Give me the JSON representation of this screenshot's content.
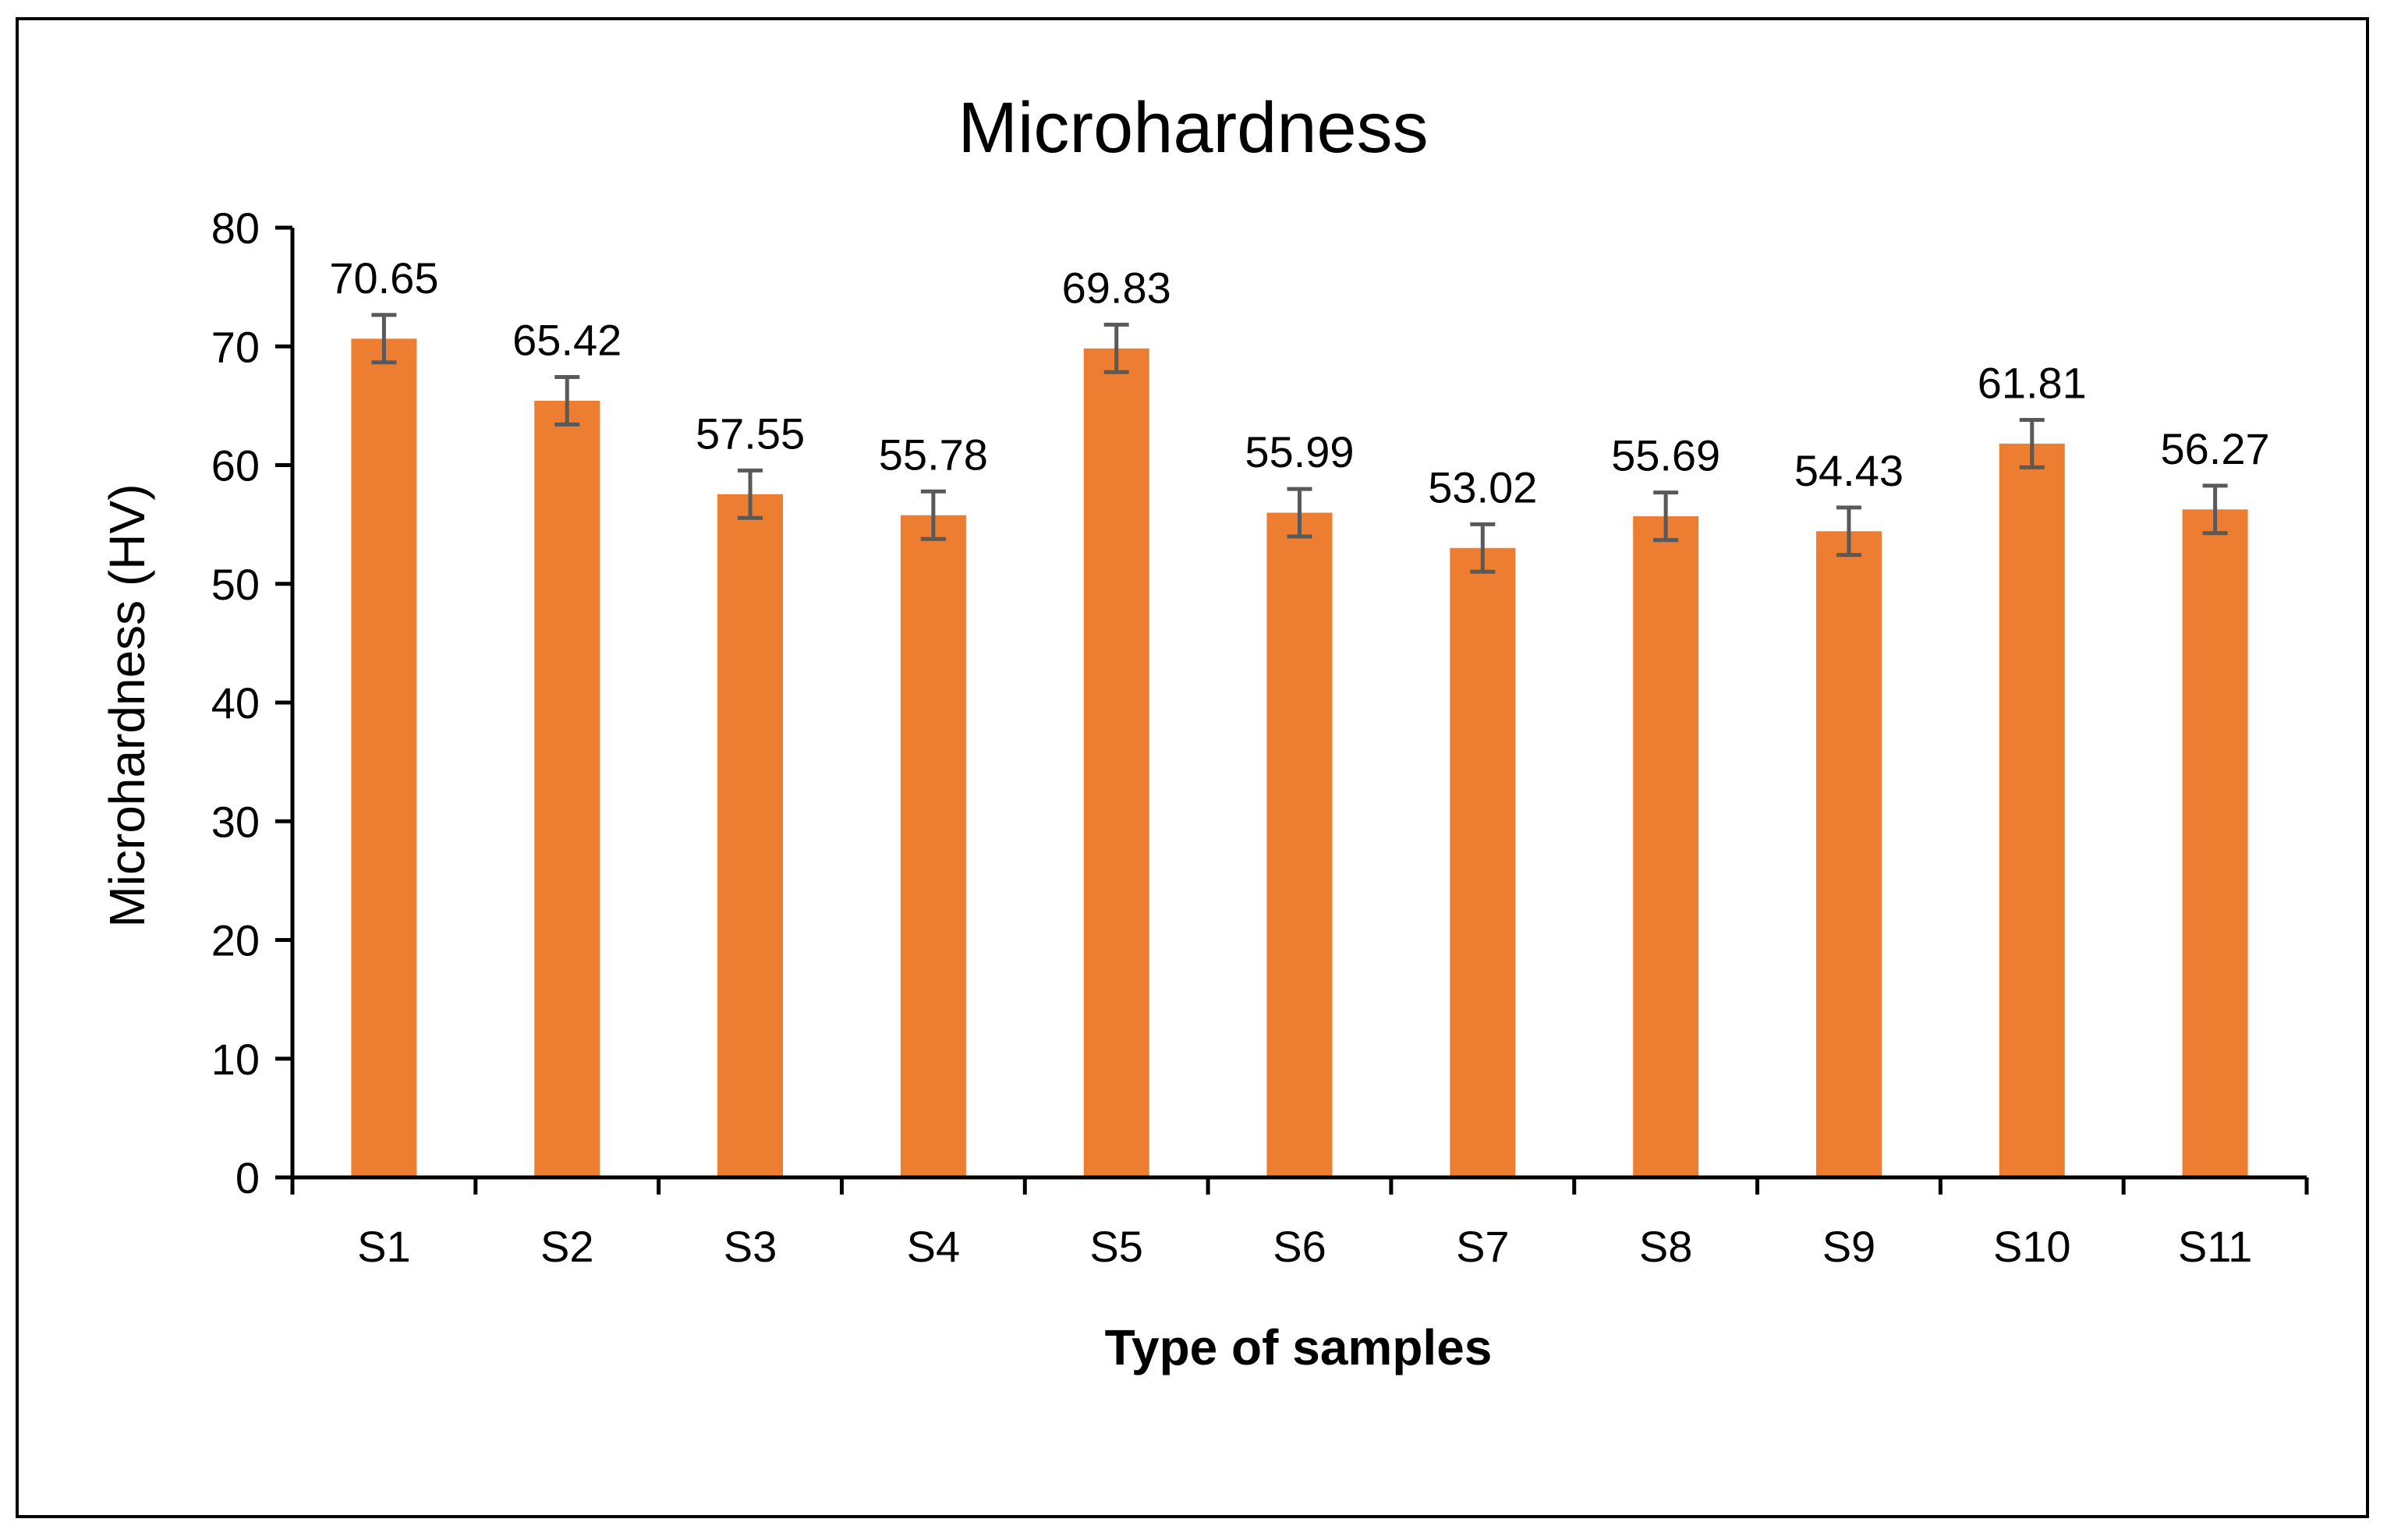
{
  "chart_data": {
    "type": "bar",
    "title": "Microhardness",
    "xlabel": "Type of samples",
    "ylabel": "Microhardness (HV)",
    "categories": [
      "S1",
      "S2",
      "S3",
      "S4",
      "S5",
      "S6",
      "S7",
      "S8",
      "S9",
      "S10",
      "S11"
    ],
    "values": [
      70.65,
      65.42,
      57.55,
      55.78,
      69.83,
      55.99,
      53.02,
      55.69,
      54.43,
      61.81,
      56.27
    ],
    "value_labels": [
      "70.65",
      "65.42",
      "57.55",
      "55.78",
      "69.83",
      "55.99",
      "53.02",
      "55.69",
      "54.43",
      "61.81",
      "56.27"
    ],
    "error": [
      2,
      2,
      2,
      2,
      2,
      2,
      2,
      2,
      2,
      2,
      2
    ],
    "ylim": [
      0,
      80
    ],
    "yticks": [
      0,
      10,
      20,
      30,
      40,
      50,
      60,
      70,
      80
    ],
    "ytick_labels": [
      "0",
      "10",
      "20",
      "30",
      "40",
      "50",
      "60",
      "70",
      "80"
    ],
    "grid": false,
    "bar_color": "#ED7D31",
    "error_color": "#595959"
  }
}
